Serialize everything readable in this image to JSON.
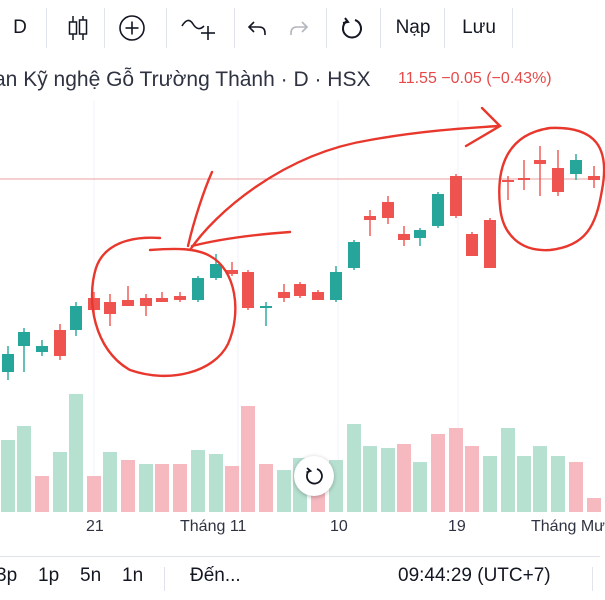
{
  "toolbar": {
    "interval": "D",
    "load_label": "Nạp",
    "save_label": "Lưu",
    "icons": [
      "candles-icon",
      "add-icon",
      "indicator-icon",
      "undo-icon",
      "redo-icon",
      "refresh-icon"
    ]
  },
  "symbol": {
    "name": "an Kỹ nghệ Gỗ Trường Thành · D · HSX",
    "last": "11.55",
    "change": "−0.05",
    "change_pct": "(−0.43%)"
  },
  "colors": {
    "up": "#26a69a",
    "down": "#ef5350",
    "up_volume": "#b6e1d0",
    "down_volume": "#f7b9c0",
    "annotation": "#e8372c",
    "price_line": "#e8a0a0"
  },
  "chart_data": {
    "type": "candlestick",
    "price_axis": "not visible",
    "x_ticks": [
      "21",
      "Tháng 11",
      "10",
      "19",
      "Tháng Mư"
    ],
    "annotations": "hand-drawn red circles around two consolidation zones connected by curved arrows"
  },
  "axis": {
    "labels": [
      "21",
      "Tháng 11",
      "10",
      "19",
      "Tháng Mư"
    ]
  },
  "bottom": {
    "ranges": [
      "3p",
      "1p",
      "5n",
      "1n"
    ],
    "goto_label": "Đến...",
    "clock": "09:44:29 (UTC+7)"
  }
}
